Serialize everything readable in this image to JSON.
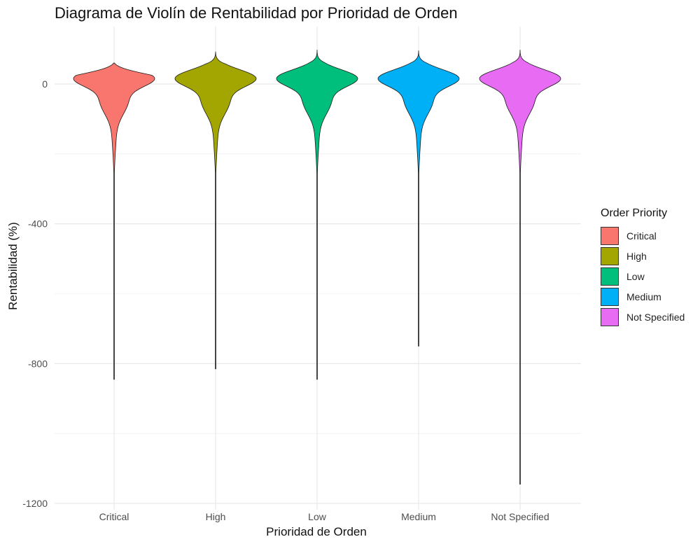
{
  "chart_data": {
    "type": "violin",
    "title": "Diagrama de Violín de Rentabilidad por Prioridad de Orden",
    "xlabel": "Prioridad de Orden",
    "ylabel": "Rentabilidad (%)",
    "categories": [
      "Critical",
      "High",
      "Low",
      "Medium",
      "Not Specified"
    ],
    "ylim": [
      -1200,
      100
    ],
    "yticks": [
      0,
      -400,
      -800,
      -1200
    ],
    "grid": true,
    "legend": {
      "title": "Order Priority",
      "position": "right",
      "items": [
        "Critical",
        "High",
        "Low",
        "Medium",
        "Not Specified"
      ]
    },
    "series": [
      {
        "name": "Critical",
        "color": "#F8766D",
        "min": -845,
        "max": 60
      },
      {
        "name": "High",
        "color": "#A3A500",
        "min": -815,
        "max": 92
      },
      {
        "name": "Low",
        "color": "#00BF7D",
        "min": -845,
        "max": 97
      },
      {
        "name": "Medium",
        "color": "#00B0F6",
        "min": -750,
        "max": 95
      },
      {
        "name": "Not Specified",
        "color": "#E76BF3",
        "min": -1145,
        "max": 97
      }
    ]
  }
}
